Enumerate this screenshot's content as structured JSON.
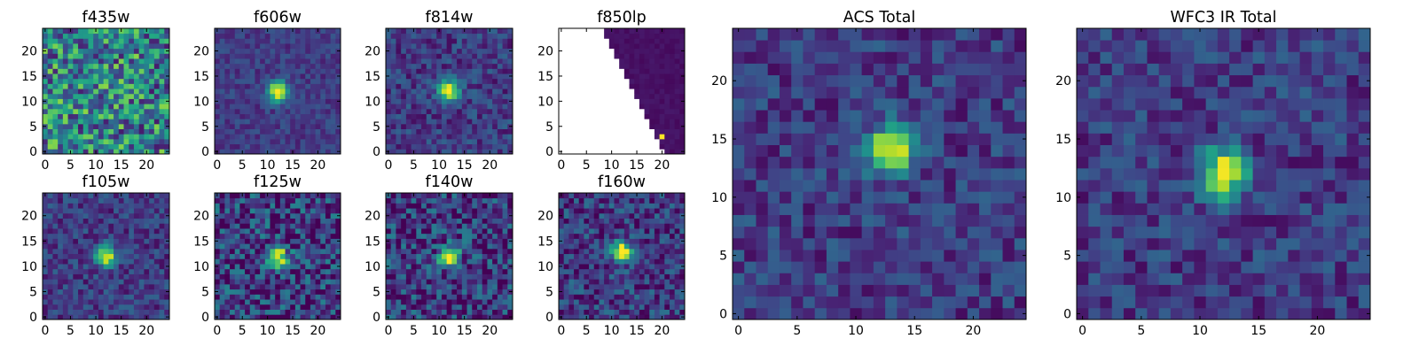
{
  "chart_data": {
    "type": "heatmap",
    "colormap": "viridis",
    "grid": false,
    "panels": [
      {
        "title": "f435w",
        "image_size": 25,
        "xlim": [
          -0.5,
          24.5
        ],
        "ylim": [
          -0.5,
          24.5
        ],
        "xticks": [
          0,
          5,
          10,
          15,
          20
        ],
        "yticks": [
          0,
          5,
          10,
          15,
          20
        ],
        "pattern": "noise",
        "peak": null,
        "noise_level": 0.75
      },
      {
        "title": "f606w",
        "image_size": 25,
        "xlim": [
          -0.5,
          24.5
        ],
        "ylim": [
          -0.5,
          24.5
        ],
        "xticks": [
          0,
          5,
          10,
          15,
          20
        ],
        "yticks": [
          0,
          5,
          10,
          15,
          20
        ],
        "pattern": "source",
        "peak": [
          12,
          12
        ],
        "noise_level": 0.2
      },
      {
        "title": "f814w",
        "image_size": 25,
        "xlim": [
          -0.5,
          24.5
        ],
        "ylim": [
          -0.5,
          24.5
        ],
        "xticks": [
          0,
          5,
          10,
          15,
          20
        ],
        "yticks": [
          0,
          5,
          10,
          15,
          20
        ],
        "pattern": "source",
        "peak": [
          12,
          12
        ],
        "noise_level": 0.3
      },
      {
        "title": "f850lp",
        "image_size": 25,
        "xlim": [
          -0.5,
          24.5
        ],
        "ylim": [
          -0.5,
          24.5
        ],
        "xticks": [
          0,
          5,
          10,
          15,
          20
        ],
        "yticks": [
          0,
          5,
          10,
          15,
          20
        ],
        "pattern": "masked",
        "peak": [
          20,
          3
        ],
        "noise_level": 0.05
      },
      {
        "title": "f105w",
        "image_size": 25,
        "xlim": [
          -0.5,
          24.5
        ],
        "ylim": [
          -0.5,
          24.5
        ],
        "xticks": [
          0,
          5,
          10,
          15,
          20
        ],
        "yticks": [
          0,
          5,
          10,
          15,
          20
        ],
        "pattern": "source",
        "peak": [
          12,
          12
        ],
        "noise_level": 0.3
      },
      {
        "title": "f125w",
        "image_size": 25,
        "xlim": [
          -0.5,
          24.5
        ],
        "ylim": [
          -0.5,
          24.5
        ],
        "xticks": [
          0,
          5,
          10,
          15,
          20
        ],
        "yticks": [
          0,
          5,
          10,
          15,
          20
        ],
        "pattern": "source",
        "peak": [
          12,
          12
        ],
        "noise_level": 0.55
      },
      {
        "title": "f140w",
        "image_size": 25,
        "xlim": [
          -0.5,
          24.5
        ],
        "ylim": [
          -0.5,
          24.5
        ],
        "xticks": [
          0,
          5,
          10,
          15,
          20
        ],
        "yticks": [
          0,
          5,
          10,
          15,
          20
        ],
        "pattern": "source",
        "peak": [
          12,
          12
        ],
        "noise_level": 0.5
      },
      {
        "title": "f160w",
        "image_size": 25,
        "xlim": [
          -0.5,
          24.5
        ],
        "ylim": [
          -0.5,
          24.5
        ],
        "xticks": [
          0,
          5,
          10,
          15,
          20
        ],
        "yticks": [
          0,
          5,
          10,
          15,
          20
        ],
        "pattern": "source",
        "peak": [
          12,
          13
        ],
        "noise_level": 0.4
      },
      {
        "title": "ACS Total",
        "image_size": 25,
        "xlim": [
          -0.5,
          24.5
        ],
        "ylim": [
          -0.5,
          24.5
        ],
        "xticks": [
          0,
          5,
          10,
          15,
          20
        ],
        "yticks": [
          0,
          5,
          10,
          15,
          20
        ],
        "pattern": "source",
        "peak": [
          13,
          14
        ],
        "noise_level": 0.3
      },
      {
        "title": "WFC3 IR Total",
        "image_size": 25,
        "xlim": [
          -0.5,
          24.5
        ],
        "ylim": [
          -0.5,
          24.5
        ],
        "xticks": [
          0,
          5,
          10,
          15,
          20
        ],
        "yticks": [
          0,
          5,
          10,
          15,
          20
        ],
        "pattern": "source",
        "peak": [
          12,
          12
        ],
        "noise_level": 0.3
      }
    ]
  }
}
